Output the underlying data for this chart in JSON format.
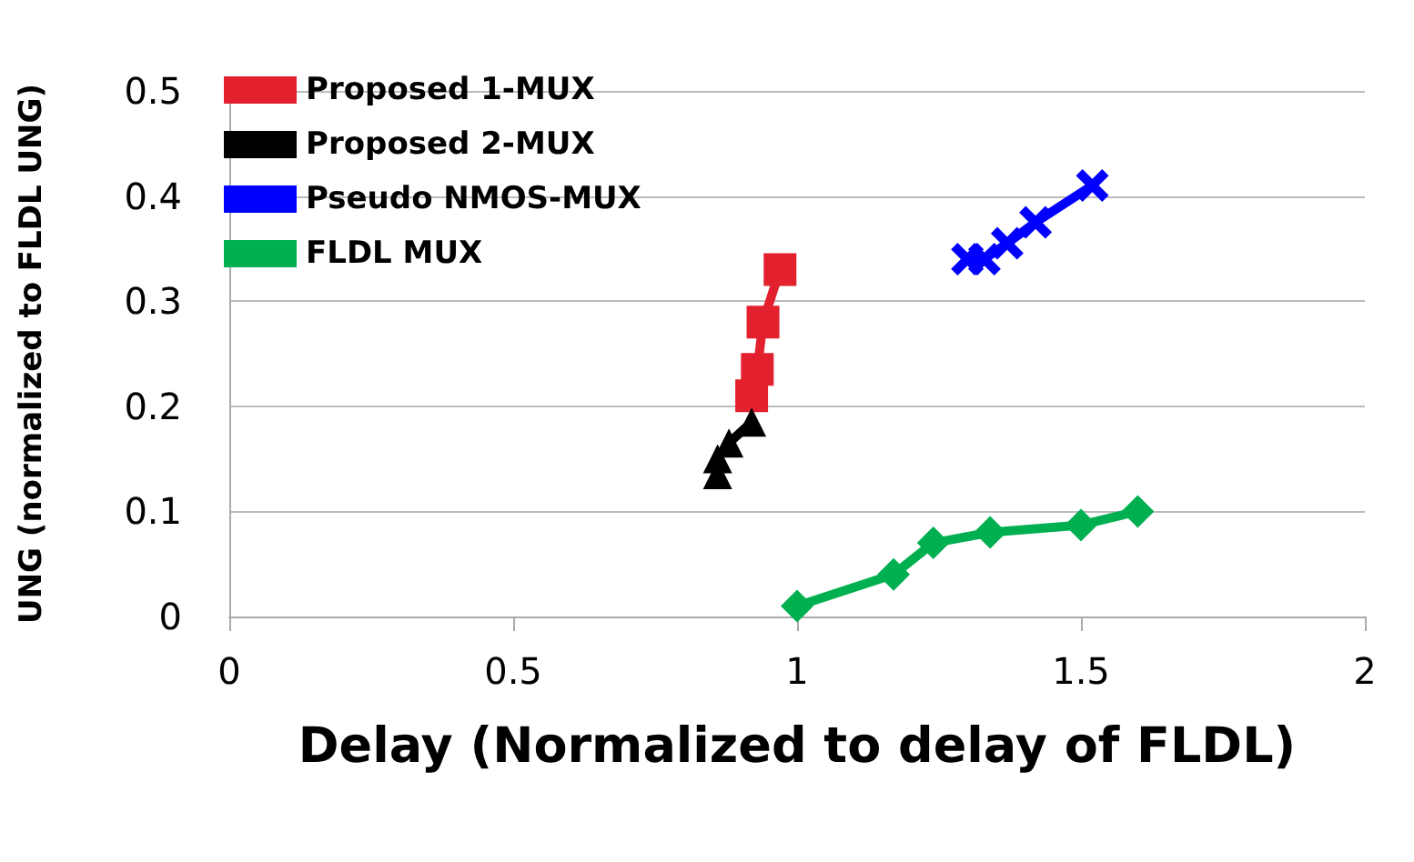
{
  "chart_data": {
    "type": "line",
    "xlabel": "Delay (Normalized to delay of FLDL)",
    "ylabel": "UNG (normalized to FLDL UNG)",
    "xlim": [
      0,
      2
    ],
    "xticks": [
      0,
      0.5,
      1,
      1.5,
      2
    ],
    "ylim": [
      0,
      0.5
    ],
    "yticks": [
      0,
      0.1,
      0.2,
      0.3,
      0.4,
      0.5
    ],
    "grid": "y",
    "legend": "top left",
    "series": [
      {
        "name": "Proposed 1-MUX",
        "color": "#e2202e",
        "marker": "square",
        "x": [
          0.92,
          0.93,
          0.94,
          0.97
        ],
        "values": [
          0.21,
          0.235,
          0.28,
          0.33
        ]
      },
      {
        "name": "Proposed 2-MUX",
        "color": "#000000",
        "marker": "triangle",
        "x": [
          0.86,
          0.86,
          0.88,
          0.92
        ],
        "values": [
          0.135,
          0.15,
          0.165,
          0.185
        ]
      },
      {
        "name": "Pseudo NMOS-MUX",
        "color": "#0000ff",
        "marker": "cross",
        "x": [
          1.3,
          1.33,
          1.37,
          1.42,
          1.52
        ],
        "values": [
          0.34,
          0.34,
          0.355,
          0.375,
          0.41
        ]
      },
      {
        "name": "FLDL MUX",
        "color": "#00b050",
        "marker": "diamond",
        "x": [
          1.0,
          1.17,
          1.24,
          1.34,
          1.5,
          1.6
        ],
        "values": [
          0.01,
          0.04,
          0.07,
          0.08,
          0.087,
          0.1
        ]
      }
    ]
  }
}
